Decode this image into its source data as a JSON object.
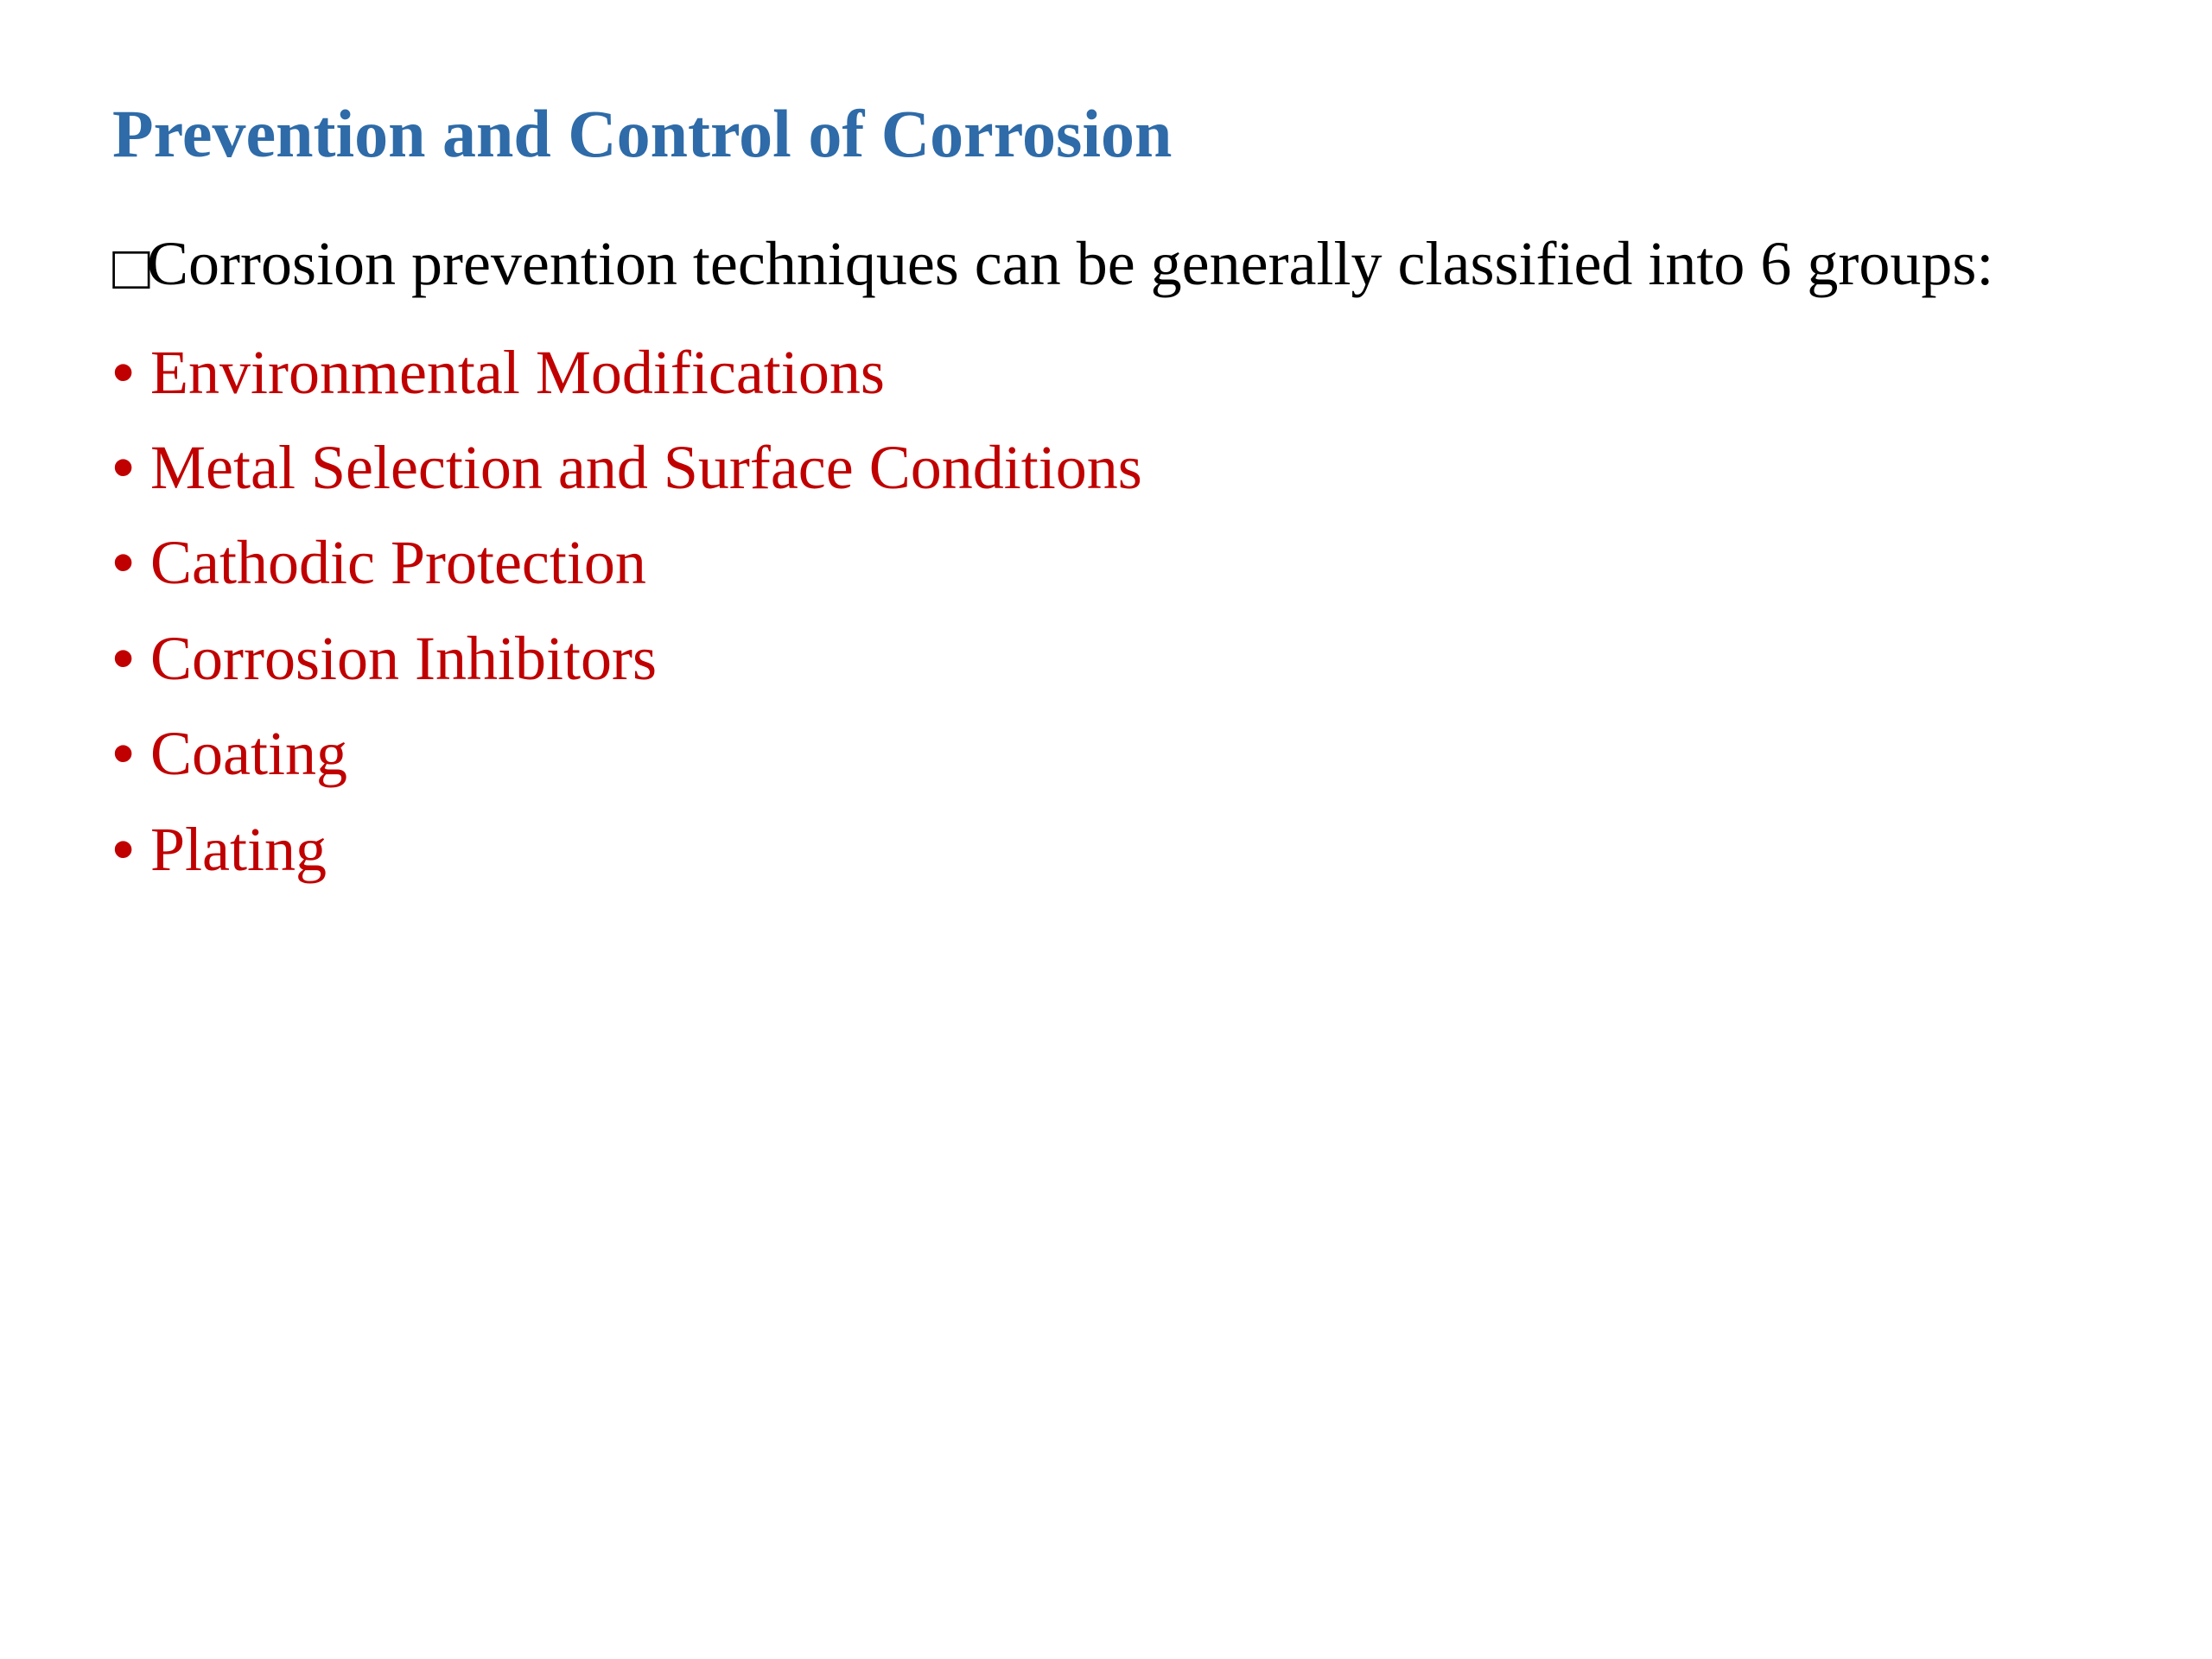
{
  "slide": {
    "title": "Prevention and Control of Corrosion",
    "intro": "Corrosion prevention techniques can be generally classified into 6 groups:",
    "items": [
      "Environmental Modifications",
      "Metal Selection and Surface Conditions",
      "Cathodic Protection",
      "Corrosion Inhibitors",
      "Coating",
      "Plating"
    ],
    "colors": {
      "title": "#2e6ba8",
      "intro": "#000000",
      "list_item": "#c00000",
      "background": "#ffffff"
    },
    "typography": {
      "title_fontsize": 78,
      "title_weight": "bold",
      "body_fontsize": 72,
      "font_family": "Palatino Linotype, Book Antiqua, serif"
    }
  }
}
